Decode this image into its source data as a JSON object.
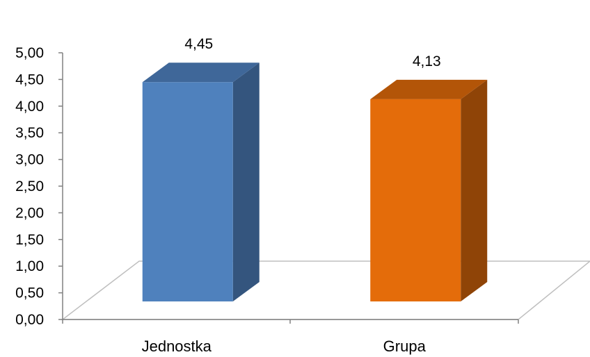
{
  "chart_data": {
    "type": "bar",
    "categories": [
      "Jednostka",
      "Grupa"
    ],
    "values": [
      4.45,
      4.13
    ],
    "value_labels": [
      "4,45",
      "4,13"
    ],
    "ylim": [
      0,
      5
    ],
    "y_ticks": [
      "0,00",
      "0,50",
      "1,00",
      "1,50",
      "2,00",
      "2,50",
      "3,00",
      "3,50",
      "4,00",
      "4,50",
      "5,00"
    ],
    "grid": false,
    "legend": "none",
    "colors": {
      "Jednostka": {
        "front": "#4f81bd",
        "side": "#34557e",
        "top": "#3f6799"
      },
      "Grupa": {
        "front": "#e46c0a",
        "side": "#8f4407",
        "top": "#b35508"
      },
      "floor": "#ffffff",
      "floor_edge": "#bfbfbf",
      "axis": "#808080"
    }
  }
}
